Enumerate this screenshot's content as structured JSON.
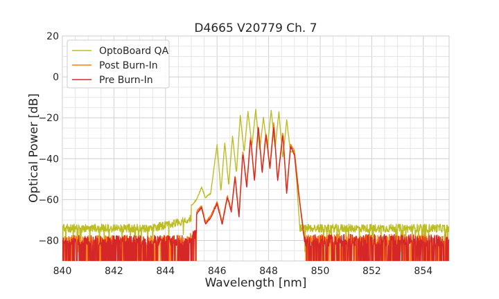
{
  "chart_data": {
    "type": "line",
    "title": "D4665 V20779 Ch. 7",
    "xlabel": "Wavelength [nm]",
    "ylabel": "Optical Power [dB]",
    "xlim": [
      840,
      855
    ],
    "ylim": [
      -90,
      20
    ],
    "xticks": [
      "840",
      "842",
      "844",
      "846",
      "848",
      "850",
      "852",
      "854"
    ],
    "yticks": [
      "−80",
      "−60",
      "−40",
      "−20",
      "0",
      "20"
    ],
    "grid": true,
    "legend": "top-left",
    "series": [
      {
        "name": "OptoBoard QA",
        "color": "#bcbd22",
        "noise_floor": -74,
        "x": [
          845.0,
          845.2,
          845.4,
          845.55,
          845.75,
          846.0,
          846.15,
          846.3,
          846.45,
          846.6,
          846.75,
          846.9,
          847.05,
          847.2,
          847.35,
          847.5,
          847.65,
          847.8,
          847.95,
          848.1,
          848.25,
          848.4,
          848.55,
          848.7,
          848.85,
          849.0,
          849.2
        ],
        "y": [
          -63,
          -60,
          -54,
          -59,
          -57,
          -33,
          -56,
          -32,
          -53,
          -29,
          -47,
          -19,
          -37,
          -17,
          -34,
          -16,
          -36,
          -20,
          -35,
          -16,
          -35,
          -17,
          -40,
          -21,
          -37,
          -36,
          -72
        ]
      },
      {
        "name": "Post Burn-In",
        "color": "#ff7f0e",
        "noise_floor": -80,
        "x": [
          845.2,
          845.4,
          845.55,
          845.75,
          846.0,
          846.2,
          846.4,
          846.55,
          846.7,
          846.85,
          847.0,
          847.15,
          847.3,
          847.45,
          847.6,
          847.75,
          847.9,
          848.05,
          848.2,
          848.35,
          848.55,
          848.7,
          848.85,
          849.0,
          849.2,
          849.4
        ],
        "y": [
          -66,
          -63,
          -71,
          -68,
          -61,
          -71,
          -58,
          -65,
          -48,
          -68,
          -36,
          -53,
          -29,
          -50,
          -24,
          -46,
          -27,
          -44,
          -22,
          -50,
          -27,
          -56,
          -33,
          -36,
          -60,
          -80
        ]
      },
      {
        "name": "Pre Burn-In",
        "color": "#d62728",
        "noise_floor": -80,
        "x": [
          845.2,
          845.4,
          845.55,
          845.75,
          846.0,
          846.2,
          846.4,
          846.55,
          846.7,
          846.85,
          847.0,
          847.15,
          847.3,
          847.45,
          847.6,
          847.75,
          847.9,
          848.05,
          848.2,
          848.35,
          848.55,
          848.7,
          848.85,
          849.0,
          849.2,
          849.4
        ],
        "y": [
          -67,
          -64,
          -72,
          -69,
          -62,
          -72,
          -59,
          -66,
          -49,
          -69,
          -37,
          -54,
          -30,
          -51,
          -24,
          -47,
          -28,
          -45,
          -24,
          -51,
          -28,
          -57,
          -34,
          -38,
          -61,
          -81
        ]
      }
    ]
  }
}
